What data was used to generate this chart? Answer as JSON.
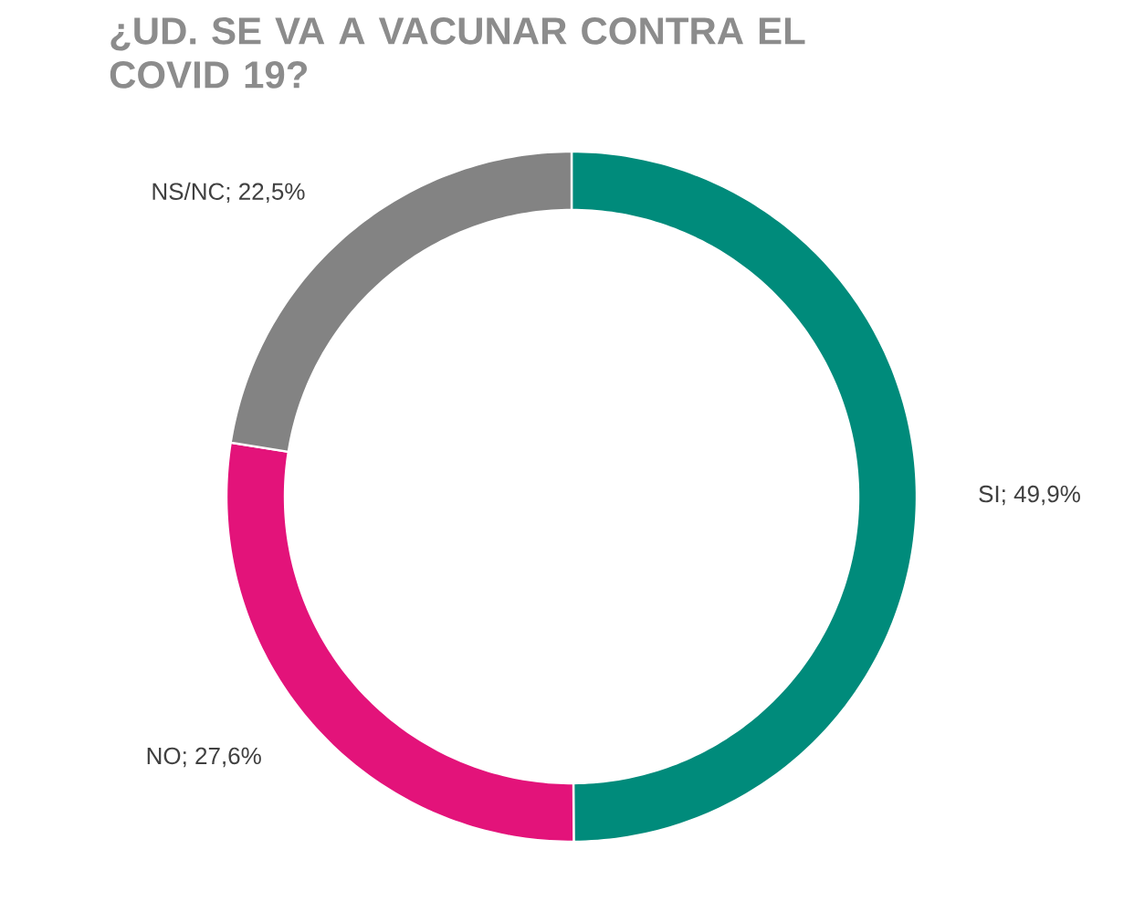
{
  "chart_data": {
    "type": "donut",
    "title": "¿UD. SE VA A VACUNAR CONTRA EL COVID 19?",
    "categories": [
      "SI",
      "NO",
      "NS/NC"
    ],
    "values": [
      49.9,
      27.6,
      22.5
    ],
    "value_labels": [
      "; 49,9%",
      "; 27,6%",
      "; 22,5%"
    ],
    "colors": [
      "#008b7b",
      "#e3137a",
      "#838383"
    ]
  }
}
